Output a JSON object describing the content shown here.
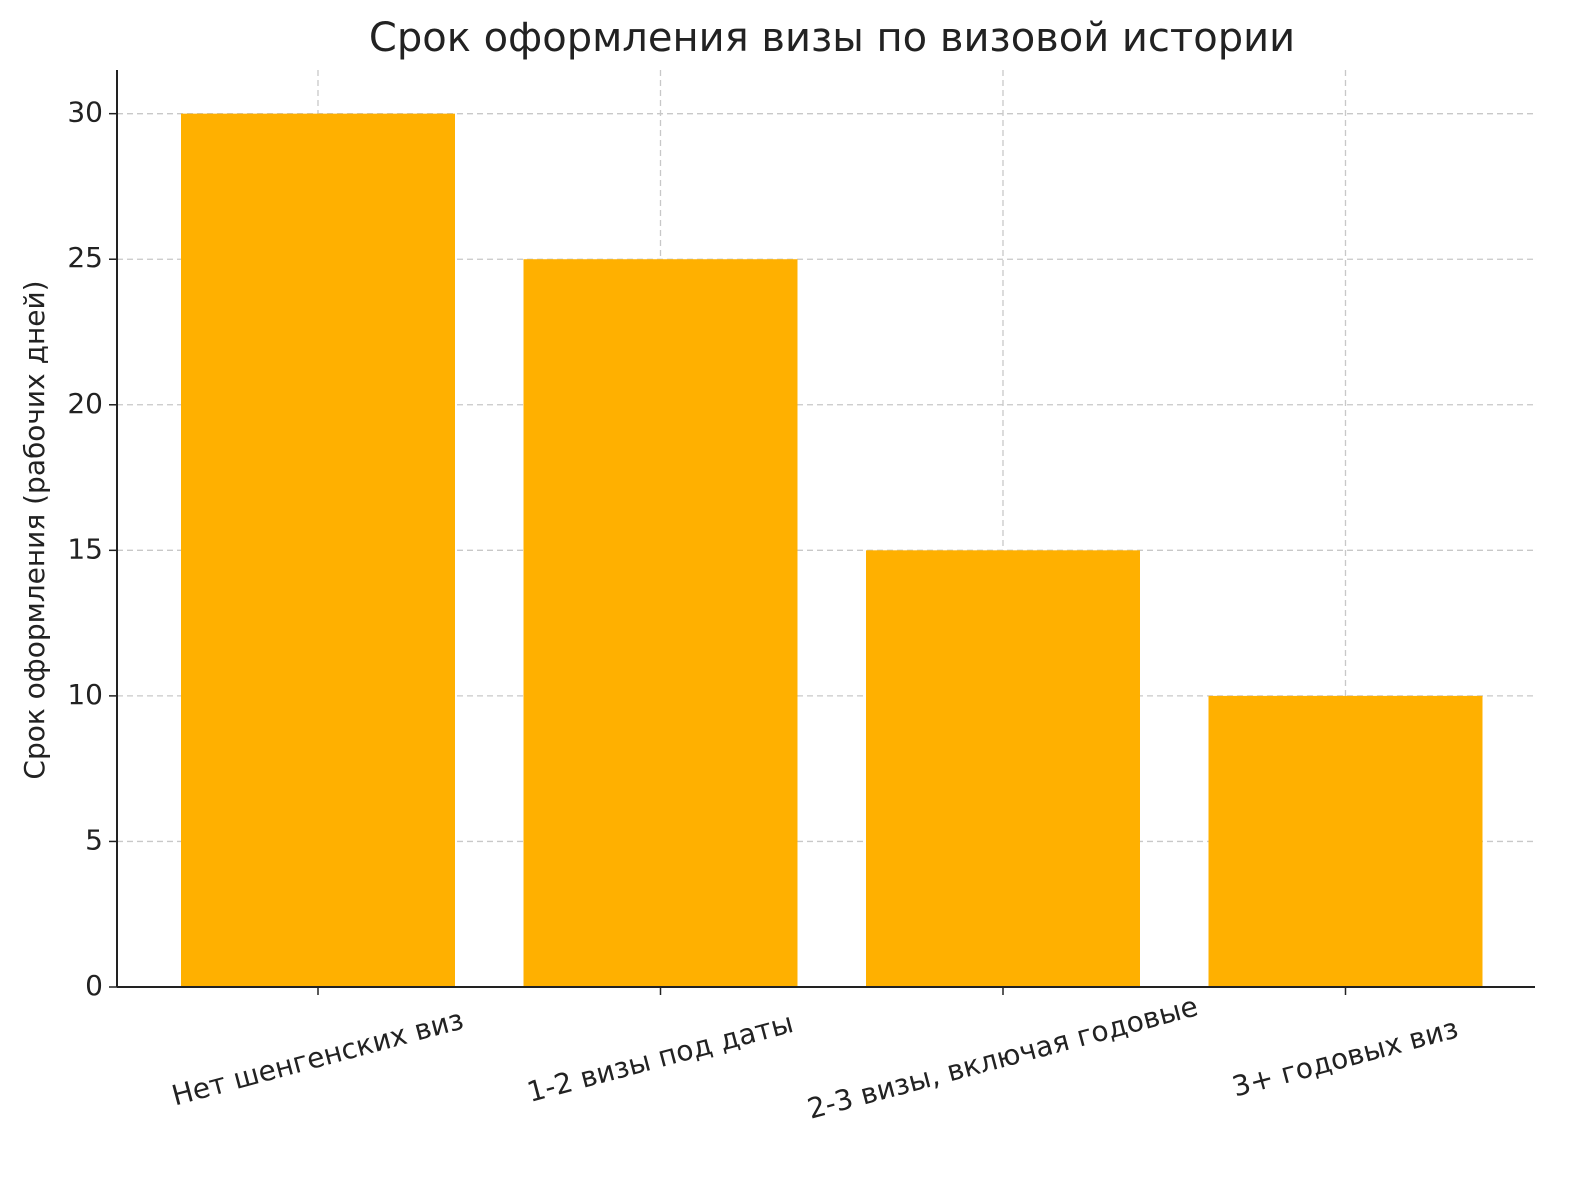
{
  "chart_data": {
    "type": "bar",
    "title": "Срок оформления визы по визовой истории",
    "y_label": "Срок оформления (рабочих дней)",
    "categories": [
      "Нет шенгенских виз",
      "1-2 визы под даты",
      "2-3 визы, включая годовые",
      "3+ годовых виз"
    ],
    "values": [
      30,
      25,
      15,
      10
    ],
    "color": "#ffb000",
    "ylim": [
      0,
      31.5
    ],
    "yticks": [
      0,
      5,
      10,
      15,
      20,
      25,
      30
    ],
    "grid": true
  }
}
